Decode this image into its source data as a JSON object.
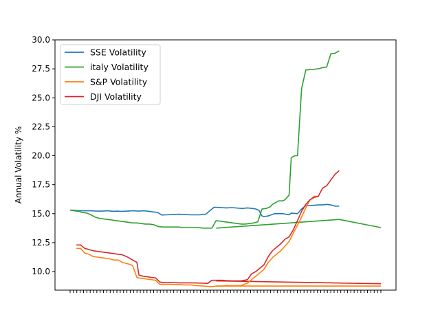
{
  "chart_data": {
    "type": "line",
    "title": "",
    "xlabel": "",
    "ylabel": "Annual Volatility %",
    "ylim": [
      8.4,
      30.0
    ],
    "y_ticks": [
      "10.0",
      "12.5",
      "15.0",
      "17.5",
      "20.0",
      "22.5",
      "25.0",
      "27.5",
      "30.0"
    ],
    "x_tick_count": 94,
    "legend_position": "top-left",
    "grid": false,
    "series": [
      {
        "name": "SSE Volatility",
        "color": "#1f77b4",
        "x": [
          0,
          2,
          10,
          15,
          20,
          25,
          30,
          36,
          42,
          44,
          50,
          55,
          60,
          66,
          70,
          74,
          76,
          80,
          84,
          88,
          92,
          98,
          100,
          104,
          110,
          116,
          124,
          130,
          138,
          140,
          150,
          155,
          165,
          170,
          175,
          178,
          181,
          184,
          186,
          190,
          196,
          200,
          204,
          210,
          212,
          218,
          222,
          226,
          230,
          234,
          238,
          242,
          246,
          250,
          254,
          258
        ],
        "values": [
          15.3,
          15.3,
          15.25,
          15.25,
          15.25,
          15.22,
          15.22,
          15.25,
          15.2,
          15.22,
          15.2,
          15.22,
          15.25,
          15.22,
          15.25,
          15.22,
          15.2,
          15.15,
          15.1,
          14.88,
          14.9,
          14.92,
          14.92,
          14.95,
          14.92,
          14.9,
          14.9,
          14.95,
          15.55,
          15.55,
          15.5,
          15.52,
          15.45,
          15.5,
          15.45,
          15.4,
          15.3,
          14.8,
          14.75,
          14.8,
          15.0,
          15.0,
          15.0,
          14.9,
          15.05,
          15.0,
          15.4,
          15.7,
          15.7,
          15.72,
          15.75,
          15.75,
          15.8,
          15.75,
          15.65,
          15.65
        ]
      },
      {
        "name": "italy Volatility",
        "color": "#2ca02c",
        "x": [
          0,
          4,
          8,
          12,
          16,
          20,
          24,
          28,
          32,
          36,
          40,
          44,
          48,
          52,
          56,
          60,
          64,
          68,
          72,
          76,
          80,
          84,
          88,
          92,
          96,
          100,
          104,
          108,
          112,
          116,
          120,
          124,
          128,
          132,
          136,
          140,
          144,
          148,
          152,
          156,
          160,
          164,
          168,
          172,
          176,
          180,
          184,
          188,
          192,
          194,
          196,
          198,
          200,
          204,
          206,
          208,
          210,
          212,
          214,
          216,
          218,
          222,
          226,
          232,
          238,
          242,
          246,
          250,
          254,
          258
        ],
        "values": [
          15.3,
          15.25,
          15.2,
          15.1,
          15.05,
          14.9,
          14.7,
          14.6,
          14.55,
          14.5,
          14.45,
          14.4,
          14.35,
          14.3,
          14.25,
          14.2,
          14.2,
          14.15,
          14.1,
          14.1,
          14.05,
          13.9,
          13.85,
          13.85,
          13.85,
          13.85,
          13.85,
          13.8,
          13.8,
          13.8,
          13.8,
          13.78,
          13.75,
          13.75,
          13.75,
          14.4,
          14.35,
          14.3,
          14.25,
          14.2,
          14.15,
          14.1,
          14.1,
          14.15,
          14.2,
          14.3,
          15.4,
          15.45,
          15.6,
          15.8,
          15.9,
          16.0,
          16.1,
          16.1,
          16.2,
          16.4,
          16.6,
          19.8,
          19.95,
          20.0,
          20.0,
          25.8,
          27.4,
          27.45,
          27.5,
          27.6,
          27.65,
          28.8,
          28.85,
          29.05
        ]
      },
      {
        "name": "S&P Volatility",
        "color": "#ff7f0e",
        "x": [
          6,
          10,
          14,
          18,
          22,
          26,
          30,
          34,
          38,
          42,
          46,
          50,
          54,
          58,
          60,
          62,
          64,
          66,
          70,
          74,
          78,
          82,
          86,
          90,
          96,
          100,
          104,
          110,
          116,
          120,
          128,
          132,
          136,
          140,
          146,
          150,
          156,
          160,
          164,
          170,
          174,
          178,
          182,
          186,
          190,
          194,
          198,
          202,
          206,
          210,
          214,
          218,
          222,
          226,
          230,
          234,
          238
        ],
        "values": [
          12.0,
          12.0,
          11.6,
          11.5,
          11.3,
          11.25,
          11.2,
          11.15,
          11.1,
          11.0,
          11.0,
          10.8,
          10.7,
          10.6,
          10.5,
          10.0,
          9.5,
          9.45,
          9.4,
          9.35,
          9.3,
          9.25,
          8.9,
          8.9,
          8.9,
          8.88,
          8.88,
          8.85,
          8.85,
          8.8,
          8.75,
          8.72,
          8.7,
          8.75,
          8.75,
          8.8,
          8.78,
          8.78,
          8.8,
          9.0,
          9.3,
          9.6,
          9.9,
          10.2,
          10.8,
          11.2,
          11.5,
          11.8,
          12.2,
          12.6,
          13.3,
          14.0,
          14.7,
          15.5,
          16.2,
          16.5,
          16.5
        ]
      },
      {
        "name": "DJI Volatility",
        "color": "#d62728",
        "x": [
          6,
          10,
          14,
          18,
          22,
          26,
          30,
          34,
          38,
          42,
          46,
          50,
          54,
          58,
          60,
          62,
          64,
          66,
          70,
          74,
          78,
          82,
          86,
          90,
          96,
          100,
          104,
          110,
          116,
          120,
          128,
          132,
          136,
          140,
          146,
          150,
          156,
          160,
          164,
          170,
          174,
          178,
          182,
          186,
          190,
          194,
          198,
          202,
          206,
          210,
          214,
          218,
          222,
          226,
          230,
          234,
          238,
          242,
          246,
          250,
          254,
          258
        ],
        "values": [
          12.3,
          12.3,
          12.0,
          11.9,
          11.8,
          11.75,
          11.7,
          11.65,
          11.6,
          11.55,
          11.5,
          11.45,
          11.3,
          11.1,
          11.0,
          10.9,
          10.8,
          9.7,
          9.6,
          9.55,
          9.5,
          9.45,
          9.1,
          9.05,
          9.05,
          9.05,
          9.03,
          9.03,
          9.03,
          9.02,
          9.0,
          8.98,
          9.25,
          9.25,
          9.25,
          9.22,
          9.2,
          9.2,
          9.2,
          9.3,
          9.8,
          10.0,
          10.3,
          10.6,
          11.3,
          11.8,
          12.1,
          12.4,
          12.8,
          13.0,
          13.6,
          14.4,
          15.2,
          15.8,
          16.2,
          16.4,
          16.5,
          17.2,
          17.4,
          17.9,
          18.4,
          18.7
        ]
      }
    ],
    "flat_lines": [
      {
        "series": "italy Volatility",
        "color": "#2ca02c",
        "x_start": 140,
        "x_end": 258,
        "values_start": 13.75,
        "values_end": 14.5
      },
      {
        "series": "italy Volatility",
        "color": "#2ca02c",
        "x_start": 258,
        "x_end": 298,
        "values_start": 14.5,
        "values_end": 13.8
      },
      {
        "series": "S&P Volatility",
        "color": "#ff7f0e",
        "x_start": 140,
        "x_end": 298,
        "values_start": 8.75,
        "values_end": 8.75
      },
      {
        "series": "DJI Volatility",
        "color": "#d62728",
        "x_start": 140,
        "x_end": 298,
        "values_start": 9.2,
        "values_end": 8.95
      }
    ]
  }
}
